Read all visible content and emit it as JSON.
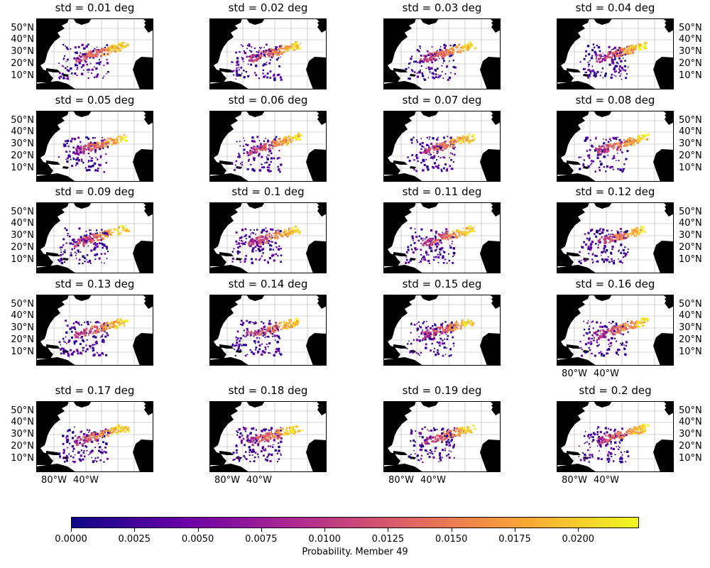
{
  "panels": [
    {
      "title": "std = 0.01 deg"
    },
    {
      "title": "std = 0.02 deg"
    },
    {
      "title": "std = 0.03 deg"
    },
    {
      "title": "std = 0.04 deg"
    },
    {
      "title": "std = 0.05 deg"
    },
    {
      "title": "std = 0.06 deg"
    },
    {
      "title": "std = 0.07 deg"
    },
    {
      "title": "std = 0.08 deg"
    },
    {
      "title": "std = 0.09 deg"
    },
    {
      "title": "std = 0.1 deg"
    },
    {
      "title": "std = 0.11 deg"
    },
    {
      "title": "std = 0.12 deg"
    },
    {
      "title": "std = 0.13 deg"
    },
    {
      "title": "std = 0.14 deg"
    },
    {
      "title": "std = 0.15 deg"
    },
    {
      "title": "std = 0.16 deg"
    },
    {
      "title": "std = 0.17 deg"
    },
    {
      "title": "std = 0.18 deg"
    },
    {
      "title": "std = 0.19 deg"
    },
    {
      "title": "std = 0.2 deg"
    }
  ],
  "lat_ticks": [
    "50°N",
    "40°N",
    "30°N",
    "20°N",
    "10°N"
  ],
  "lon_ticks": [
    "80°W",
    "40°W"
  ],
  "colorbar": {
    "label": "Probability. Member 49",
    "min": 0.0,
    "max": 0.0224,
    "ticks": [
      "0.0000",
      "0.0025",
      "0.0050",
      "0.0075",
      "0.0100",
      "0.0125",
      "0.0150",
      "0.0175",
      "0.0200"
    ],
    "colormap": [
      "#0d0887",
      "#6a00a8",
      "#b12a90",
      "#e16462",
      "#fca636",
      "#f0f921"
    ]
  },
  "colors": {
    "land": "#000000",
    "ocean": "#ffffff",
    "grid": "#b0b0b0"
  }
}
